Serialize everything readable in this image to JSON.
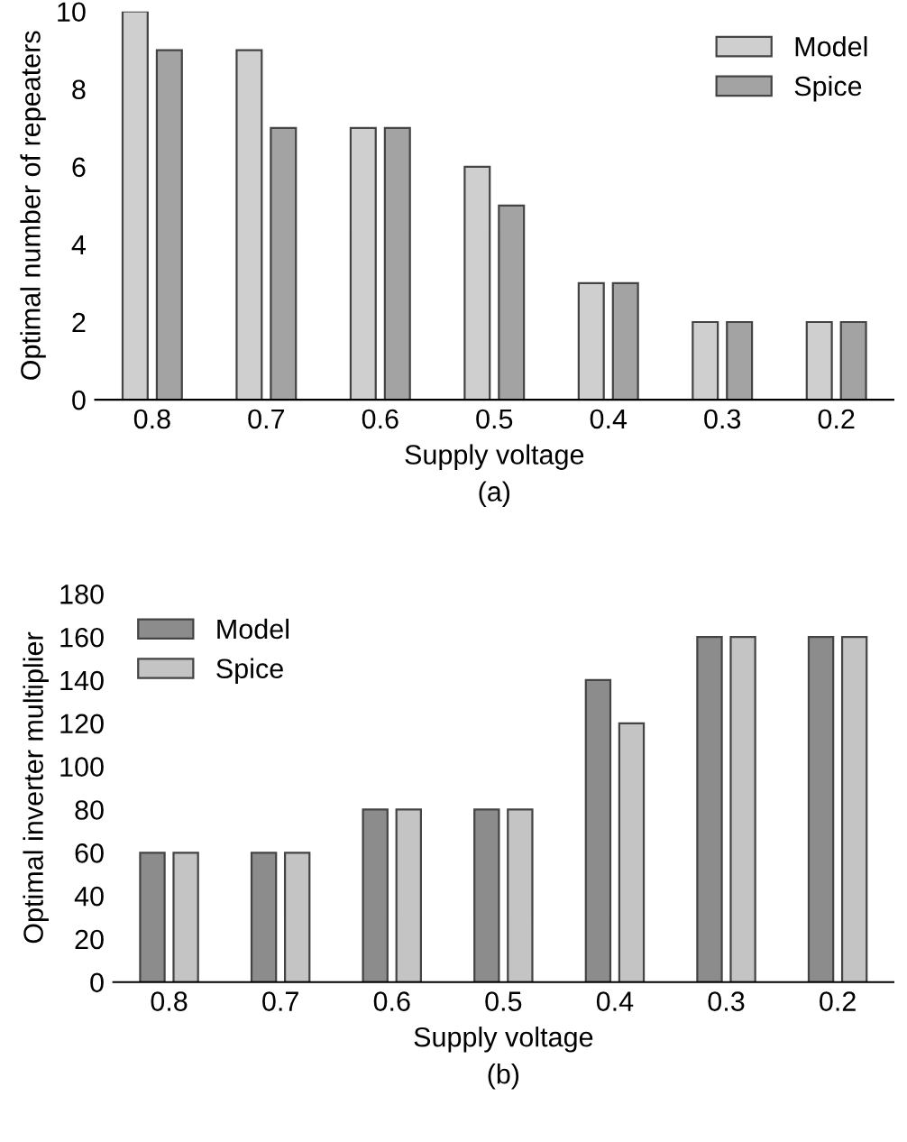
{
  "chart_data": [
    {
      "type": "bar",
      "title": "(a)",
      "xlabel": "Supply voltage",
      "ylabel": "Optimal number of repeaters",
      "categories": [
        "0.8",
        "0.7",
        "0.6",
        "0.5",
        "0.4",
        "0.3",
        "0.2"
      ],
      "series": [
        {
          "name": "Model",
          "color": "#cfcfcf",
          "values": [
            10,
            9,
            7,
            6,
            3,
            2,
            2
          ]
        },
        {
          "name": "Spice",
          "color": "#a3a3a3",
          "values": [
            9,
            7,
            7,
            5,
            3,
            2,
            2
          ]
        }
      ],
      "ylim": [
        0,
        10
      ],
      "yticks": [
        0,
        2,
        4,
        6,
        8,
        10
      ],
      "legend": "top right"
    },
    {
      "type": "bar",
      "title": "(b)",
      "xlabel": "Supply voltage",
      "ylabel": "Optimal inverter multiplier",
      "categories": [
        "0.8",
        "0.7",
        "0.6",
        "0.5",
        "0.4",
        "0.3",
        "0.2"
      ],
      "series": [
        {
          "name": "Model",
          "color": "#8c8c8c",
          "values": [
            60,
            60,
            80,
            80,
            140,
            160,
            160
          ]
        },
        {
          "name": "Spice",
          "color": "#c4c4c4",
          "values": [
            60,
            60,
            80,
            80,
            120,
            160,
            160
          ]
        }
      ],
      "ylim": [
        0,
        180
      ],
      "yticks": [
        0,
        20,
        40,
        60,
        80,
        100,
        120,
        140,
        160,
        180
      ],
      "legend": "top left"
    }
  ]
}
